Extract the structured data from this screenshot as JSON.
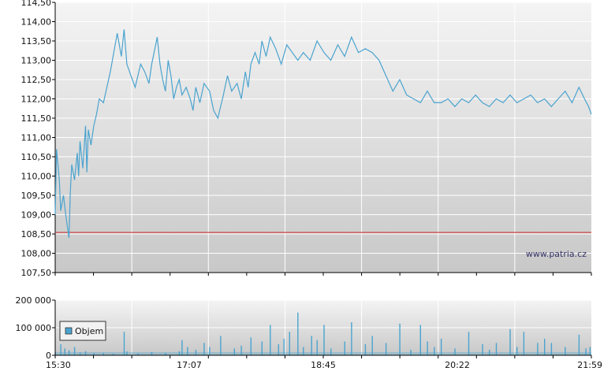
{
  "watermark": "www.patria.cz",
  "colors": {
    "price_line": "#4aa3cf",
    "reference_line": "#cc3333",
    "volume_bars": "#4aa3cf",
    "grid": "#ffffff",
    "plot_bg_top": "#f4f4f4",
    "plot_bg_bottom": "#c8c8c8",
    "axis": "#000000"
  },
  "chart_data": [
    {
      "type": "line",
      "title": "",
      "ylim": [
        107.5,
        114.5
      ],
      "y_ticks": [
        "107,50",
        "108,00",
        "108,50",
        "109,00",
        "109,50",
        "110,00",
        "110,50",
        "111,00",
        "111,50",
        "112,00",
        "112,50",
        "113,00",
        "113,50",
        "114,00",
        "114,50"
      ],
      "x_range_minutes": [
        930,
        1319
      ],
      "reference_line": 108.54,
      "series": [
        {
          "x": [
            "15:30",
            "15:31",
            "15:32",
            "15:33",
            "15:34",
            "15:36",
            "15:37",
            "15:38",
            "15:40",
            "15:41",
            "15:42",
            "15:44",
            "15:46",
            "15:47",
            "15:48",
            "15:50",
            "15:52",
            "15:53",
            "15:54",
            "15:56",
            "15:58",
            "16:00",
            "16:02",
            "16:05",
            "16:10",
            "16:15",
            "16:18",
            "16:20",
            "16:22",
            "16:25",
            "16:28",
            "16:32",
            "16:35",
            "16:38",
            "16:40",
            "16:44",
            "16:46",
            "16:48",
            "16:50",
            "16:52",
            "16:54",
            "16:56",
            "16:58",
            "17:00",
            "17:02",
            "17:05",
            "17:08",
            "17:10",
            "17:12",
            "17:15",
            "17:18",
            "17:22",
            "17:25",
            "17:28",
            "17:32",
            "17:35",
            "17:38",
            "17:42",
            "17:45",
            "17:48",
            "17:50",
            "17:52",
            "17:55",
            "17:58",
            "18:00",
            "18:03",
            "18:06",
            "18:10",
            "18:14",
            "18:18",
            "18:22",
            "18:26",
            "18:30",
            "18:35",
            "18:40",
            "18:45",
            "18:50",
            "18:55",
            "19:00",
            "19:05",
            "19:10",
            "19:15",
            "19:20",
            "19:25",
            "19:30",
            "19:35",
            "19:40",
            "19:45",
            "19:50",
            "19:55",
            "20:00",
            "20:05",
            "20:10",
            "20:15",
            "20:20",
            "20:25",
            "20:30",
            "20:35",
            "20:40",
            "20:45",
            "20:50",
            "20:55",
            "21:00",
            "21:05",
            "21:10",
            "21:15",
            "21:20",
            "21:25",
            "21:30",
            "21:35",
            "21:40",
            "21:45",
            "21:50",
            "21:54",
            "21:57",
            "21:59"
          ],
          "y": [
            109.0,
            110.7,
            110.3,
            109.9,
            109.1,
            109.5,
            109.2,
            108.9,
            108.4,
            109.6,
            110.3,
            109.9,
            110.6,
            110.0,
            110.9,
            110.2,
            111.3,
            110.1,
            111.2,
            110.8,
            111.3,
            111.6,
            112.0,
            111.9,
            112.7,
            113.7,
            113.1,
            113.8,
            112.9,
            112.6,
            112.3,
            112.9,
            112.7,
            112.4,
            112.9,
            113.6,
            112.9,
            112.5,
            112.2,
            113.0,
            112.6,
            112.0,
            112.3,
            112.5,
            112.1,
            112.3,
            112.0,
            111.7,
            112.3,
            111.9,
            112.4,
            112.2,
            111.7,
            111.5,
            112.1,
            112.6,
            112.2,
            112.4,
            112.0,
            112.7,
            112.3,
            112.9,
            113.2,
            112.9,
            113.5,
            113.1,
            113.6,
            113.3,
            112.9,
            113.4,
            113.2,
            113.0,
            113.2,
            113.0,
            113.5,
            113.2,
            113.0,
            113.4,
            113.1,
            113.6,
            113.2,
            113.3,
            113.2,
            113.0,
            112.6,
            112.2,
            112.5,
            112.1,
            112.0,
            111.9,
            112.2,
            111.9,
            111.9,
            112.0,
            111.8,
            112.0,
            111.9,
            112.1,
            111.9,
            111.8,
            112.0,
            111.9,
            112.1,
            111.9,
            112.0,
            112.1,
            111.9,
            112.0,
            111.8,
            112.0,
            112.2,
            111.9,
            112.3,
            112.0,
            111.8,
            111.6
          ]
        }
      ]
    },
    {
      "type": "bar",
      "title": "",
      "ylim": [
        0,
        200000
      ],
      "y_ticks": [
        "0",
        "100 000",
        "200 000"
      ],
      "x_ticks": [
        "15:30",
        "17:07",
        "18:45",
        "20:22",
        "21:59"
      ],
      "legend": {
        "entries": [
          "Objem"
        ],
        "placement": "bottom-left"
      },
      "series": [
        {
          "name": "Objem",
          "x": [
            "15:30",
            "15:34",
            "15:37",
            "15:40",
            "15:44",
            "15:48",
            "15:52",
            "15:58",
            "16:05",
            "16:12",
            "16:20",
            "16:22",
            "16:30",
            "16:40",
            "16:50",
            "17:00",
            "17:02",
            "17:06",
            "17:12",
            "17:18",
            "17:22",
            "17:30",
            "17:40",
            "17:45",
            "17:52",
            "18:00",
            "18:06",
            "18:12",
            "18:16",
            "18:20",
            "18:26",
            "18:30",
            "18:36",
            "18:40",
            "18:45",
            "18:50",
            "19:00",
            "19:05",
            "19:15",
            "19:20",
            "19:30",
            "19:40",
            "19:48",
            "19:55",
            "20:00",
            "20:05",
            "20:10",
            "20:20",
            "20:30",
            "20:40",
            "20:45",
            "20:50",
            "21:00",
            "21:05",
            "21:10",
            "21:20",
            "21:25",
            "21:30",
            "21:40",
            "21:50",
            "21:55",
            "21:58"
          ],
          "values": [
            12000,
            40000,
            25000,
            18000,
            30000,
            10000,
            15000,
            8000,
            9000,
            6000,
            85000,
            14000,
            8000,
            12000,
            9000,
            15000,
            55000,
            30000,
            20000,
            45000,
            30000,
            70000,
            25000,
            35000,
            65000,
            50000,
            110000,
            40000,
            60000,
            85000,
            155000,
            30000,
            70000,
            55000,
            110000,
            25000,
            50000,
            120000,
            40000,
            70000,
            45000,
            115000,
            20000,
            110000,
            50000,
            30000,
            60000,
            25000,
            85000,
            40000,
            20000,
            45000,
            95000,
            30000,
            85000,
            45000,
            60000,
            45000,
            30000,
            75000,
            25000,
            30000
          ]
        }
      ]
    }
  ]
}
